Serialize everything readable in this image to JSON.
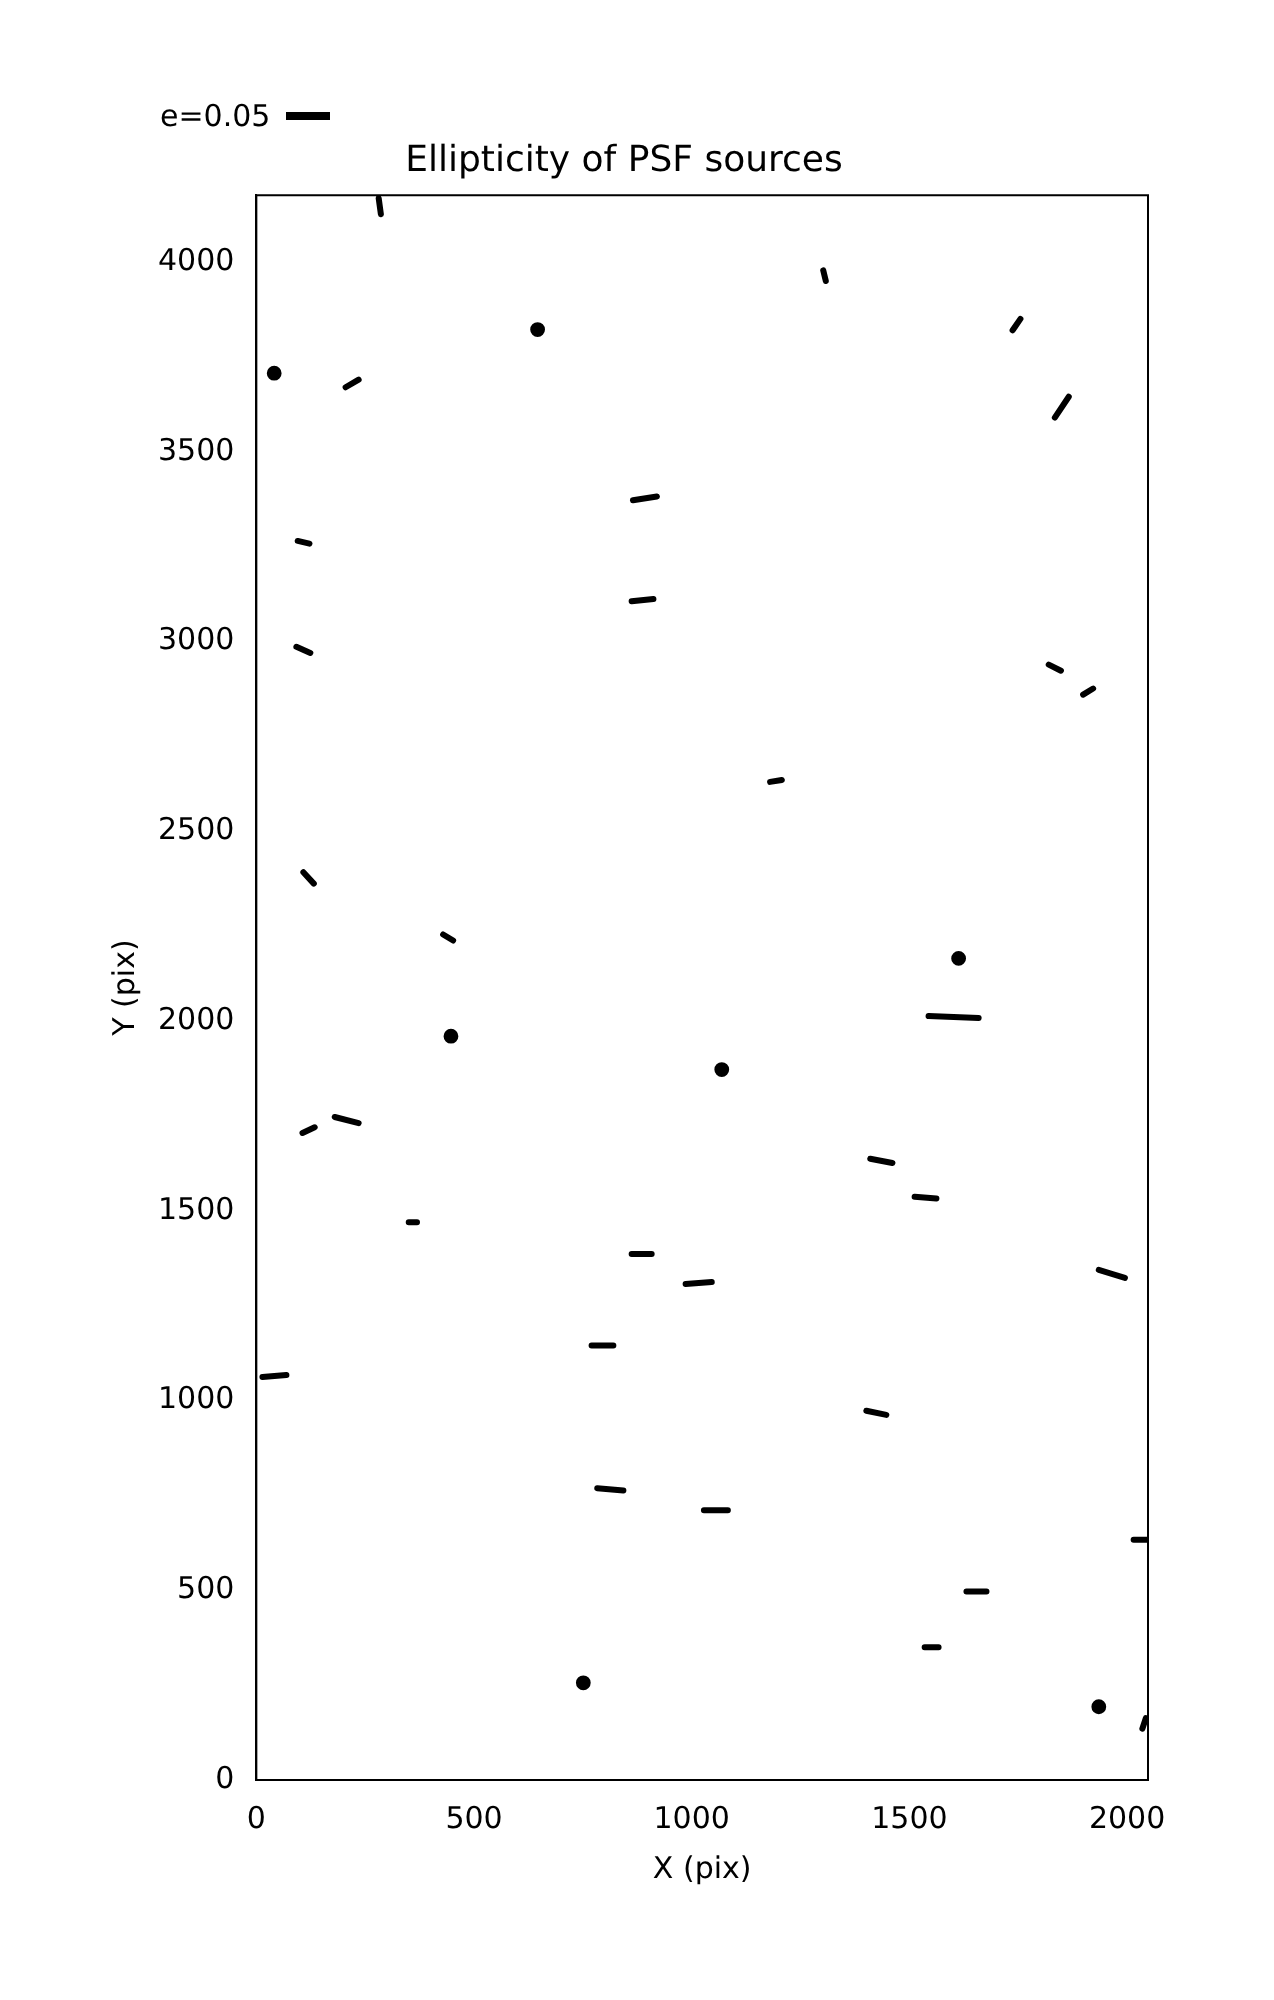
{
  "chart_data": {
    "type": "line",
    "title": "Ellipticity of PSF sources",
    "xlabel": "X (pix)",
    "ylabel": "Y (pix)",
    "xlim": [
      0,
      2048
    ],
    "ylim": [
      0,
      4176
    ],
    "xticks": [
      0,
      500,
      1000,
      1500,
      2000
    ],
    "yticks": [
      0,
      500,
      1000,
      1500,
      2000,
      2500,
      3000,
      3500,
      4000
    ],
    "annotations": [
      "e=0.05"
    ],
    "series": [
      {
        "color": "#000000",
        "x": [
          281,
          286,
          null,
          205,
          235,
          null,
          1302,
          1308,
          null,
          1737,
          1755,
          null,
          1834,
          1866,
          null,
          865,
          920,
          null,
          95,
          122,
          null,
          862,
          912,
          null,
          92,
          124,
          null,
          1820,
          1848,
          null,
          1899,
          1922,
          null,
          1180,
          1207,
          null,
          108,
          132,
          null,
          429,
          452,
          null,
          1544,
          1659,
          null,
          106,
          134,
          null,
          180,
          235,
          null,
          1410,
          1461,
          null,
          1512,
          1562,
          null,
          350,
          369,
          null,
          862,
          908,
          null,
          986,
          1046,
          null,
          1935,
          1995,
          null,
          770,
          820,
          null,
          14,
          69,
          null,
          1401,
          1447,
          null,
          783,
          843,
          null,
          1028,
          1083,
          null,
          2015,
          2048,
          null,
          1631,
          1677,
          null,
          1535,
          1567,
          null,
          2035,
          2043
        ],
        "values": [
          4168,
          4126,
          null,
          3670,
          3690,
          null,
          3978,
          3950,
          null,
          3820,
          3850,
          null,
          3590,
          3645,
          null,
          3372,
          3382,
          null,
          3265,
          3258,
          null,
          3106,
          3112,
          null,
          2986,
          2970,
          null,
          2939,
          2923,
          null,
          2860,
          2876,
          null,
          2630,
          2635,
          null,
          2392,
          2362,
          null,
          2228,
          2212,
          null,
          2013,
          2008,
          null,
          1705,
          1720,
          null,
          1747,
          1731,
          null,
          1637,
          1626,
          null,
          1537,
          1532,
          null,
          1470,
          1470,
          null,
          1386,
          1386,
          null,
          1307,
          1312,
          null,
          1344,
          1323,
          null,
          1145,
          1145,
          null,
          1062,
          1067,
          null,
          973,
          962,
          null,
          769,
          763,
          null,
          711,
          711,
          null,
          633,
          633,
          null,
          497,
          497,
          null,
          350,
          350,
          null,
          135,
          163
        ]
      },
      {
        "type": "scatter",
        "marker": "circle",
        "color": "#000000",
        "x": [
          41,
          646,
          1613,
          447,
          1069,
          751,
          1935
        ],
        "values": [
          3707,
          3822,
          2165,
          1960,
          1872,
          256,
          193
        ]
      }
    ]
  }
}
